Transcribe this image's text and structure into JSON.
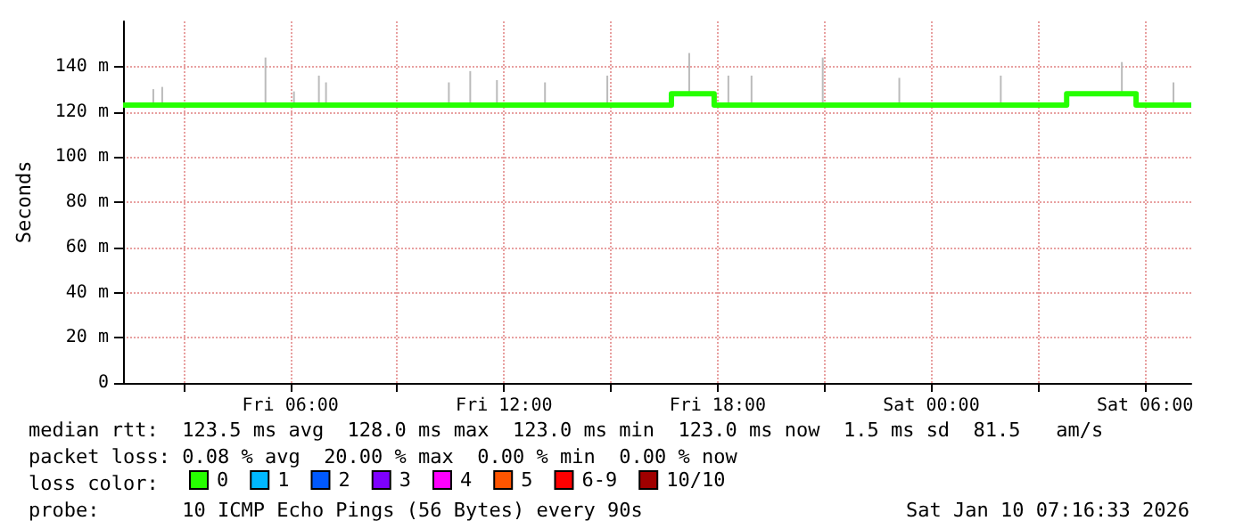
{
  "chart_data": {
    "type": "step",
    "ylabel": "Seconds",
    "legend_title": "loss color:",
    "xlim": [
      "2026-01-09T01:18",
      "2026-01-10T07:18"
    ],
    "xticks": [
      {
        "value": "2026-01-09T03:00",
        "label": null
      },
      {
        "value": "2026-01-09T06:00",
        "label": "Fri 06:00"
      },
      {
        "value": "2026-01-09T09:00",
        "label": null
      },
      {
        "value": "2026-01-09T12:00",
        "label": "Fri 12:00"
      },
      {
        "value": "2026-01-09T15:00",
        "label": null
      },
      {
        "value": "2026-01-09T18:00",
        "label": "Fri 18:00"
      },
      {
        "value": "2026-01-09T21:00",
        "label": null
      },
      {
        "value": "2026-01-10T00:00",
        "label": "Sat 00:00"
      },
      {
        "value": "2026-01-10T03:00",
        "label": null
      },
      {
        "value": "2026-01-10T06:00",
        "label": "Sat 06:00"
      }
    ],
    "ylim": [
      0,
      160
    ],
    "yticks": [
      0,
      {
        "value": 20,
        "label": "20 m"
      },
      {
        "value": 40,
        "label": "40 m"
      },
      {
        "value": 60,
        "label": "60 m"
      },
      {
        "value": 80,
        "label": "80 m"
      },
      {
        "value": 100,
        "label": "100 m"
      },
      {
        "value": 120,
        "label": "120 m"
      },
      {
        "value": 140,
        "label": "140 m"
      }
    ],
    "grid": true,
    "legend": "bottom",
    "series": [
      {
        "type": "bar",
        "color": "#bbbbbb",
        "x": [
          "2026-01-09T02:09",
          "2026-01-09T02:24",
          "2026-01-09T05:18",
          "2026-01-09T06:06",
          "2026-01-09T06:48",
          "2026-01-09T07:00",
          "2026-01-09T10:27",
          "2026-01-09T11:03",
          "2026-01-09T11:48",
          "2026-01-09T13:09",
          "2026-01-09T14:54",
          "2026-01-09T17:12",
          "2026-01-09T18:18",
          "2026-01-09T18:57",
          "2026-01-09T20:57",
          "2026-01-09T23:06",
          "2026-01-10T01:57",
          "2026-01-10T05:21",
          "2026-01-10T06:48"
        ],
        "base": [
          123,
          123,
          123,
          123,
          123,
          123,
          123,
          123,
          123,
          123,
          123,
          128,
          123,
          123,
          123,
          123,
          123,
          128,
          123
        ],
        "values": [
          7,
          8,
          21,
          6,
          13,
          10,
          10,
          15,
          11,
          10,
          13,
          18,
          13,
          13,
          21,
          12,
          13,
          14,
          10
        ]
      },
      {
        "name": "0",
        "color": "#26ff00",
        "x": [
          "2026-01-09T01:18",
          "2026-01-09T16:42",
          "2026-01-09T17:54",
          "2026-01-10T03:48",
          "2026-01-10T05:45",
          "2026-01-10T07:18"
        ],
        "values": [
          123,
          128,
          123,
          128,
          123,
          123
        ]
      },
      {
        "name": "1",
        "color": "#00b8ff"
      },
      {
        "name": "2",
        "color": "#0059ff"
      },
      {
        "name": "3",
        "color": "#7e00ff"
      },
      {
        "name": "4",
        "color": "#ff00ff"
      },
      {
        "name": "5",
        "color": "#ff5500"
      },
      {
        "name": "6-9",
        "color": "#ff0000"
      },
      {
        "name": "10/10",
        "color": "#a10000"
      }
    ],
    "annotations": [
      "median rtt:  123.5 ms avg  128.0 ms max  123.0 ms min  123.0 ms now  1.5 ms sd  81.5   am/s",
      "packet loss: 0.08 % avg  20.00 % max  0.00 % min  0.00 % now",
      "probe:       10 ICMP Echo Pings (56 Bytes) every 90s",
      "Sat Jan 10 07:16:33 2026"
    ]
  }
}
